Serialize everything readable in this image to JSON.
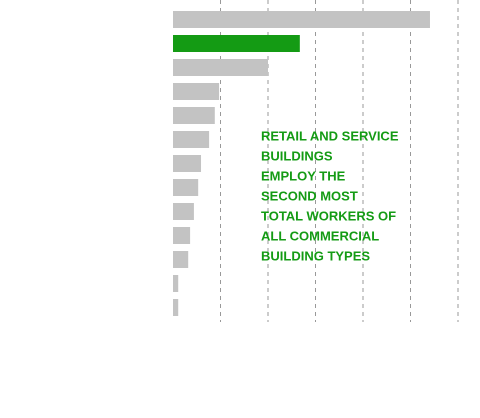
{
  "chart_data": {
    "type": "barh",
    "categories": [
      null,
      null,
      null,
      null,
      null,
      null,
      null,
      null,
      null,
      null,
      null,
      null,
      null
    ],
    "values": [
      5.41,
      2.67,
      2.0,
      0.97,
      0.88,
      0.76,
      0.59,
      0.53,
      0.44,
      0.36,
      0.32,
      0.11,
      0.11
    ],
    "colors": [
      "#c3c3c3",
      "#149b14",
      "#c3c3c3",
      "#c3c3c3",
      "#c3c3c3",
      "#c3c3c3",
      "#c3c3c3",
      "#c3c3c3",
      "#c3c3c3",
      "#c3c3c3",
      "#c3c3c3",
      "#c3c3c3",
      "#c3c3c3"
    ],
    "xlim": [
      0,
      6
    ],
    "xticks": [
      1,
      2,
      3,
      4,
      5,
      6
    ],
    "grid": true,
    "annotation": [
      "RETAIL AND SERVICE",
      "BUILDINGS",
      "EMPLOY THE",
      "SECOND MOST",
      "TOTAL WORKERS OF",
      "ALL COMMERCIAL",
      "BUILDING TYPES"
    ]
  }
}
